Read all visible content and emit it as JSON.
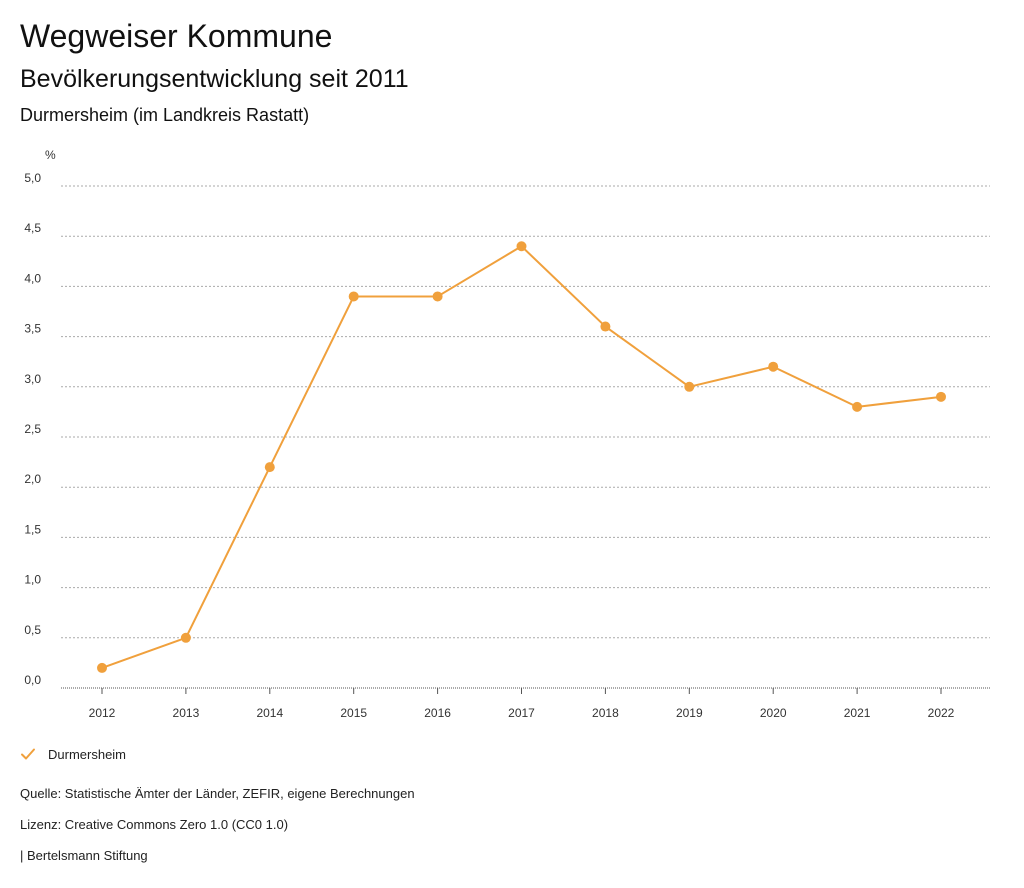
{
  "header": {
    "title": "Wegweiser Kommune",
    "subtitle": "Bevölkerungsentwicklung seit 2011",
    "place": "Durmersheim (im Landkreis Rastatt)"
  },
  "chart_data": {
    "type": "line",
    "title": "Bevölkerungsentwicklung seit 2011",
    "subtitle": "Durmersheim (im Landkreis Rastatt)",
    "xlabel": "",
    "ylabel": "%",
    "categories": [
      "2012",
      "2013",
      "2014",
      "2015",
      "2016",
      "2017",
      "2018",
      "2019",
      "2020",
      "2021",
      "2022"
    ],
    "series": [
      {
        "name": "Durmersheim",
        "color": "#f0a03c",
        "values": [
          0.2,
          0.5,
          2.2,
          3.9,
          3.9,
          4.4,
          3.6,
          3.0,
          3.2,
          2.8,
          2.9
        ]
      }
    ],
    "ylim": [
      0,
      5
    ],
    "yticks": [
      0,
      0.5,
      1,
      1.5,
      2,
      2.5,
      3,
      3.5,
      4,
      4.5,
      5
    ],
    "ytick_labels": [
      "0,0",
      "0,5",
      "1,0",
      "1,5",
      "2,0",
      "2,5",
      "3,0",
      "3,5",
      "4,0",
      "4,5",
      "5,0"
    ],
    "grid": true,
    "legend_position": "bottom-left"
  },
  "legend": {
    "label": "Durmersheim",
    "icon": "check-icon"
  },
  "footer": {
    "source": "Quelle: Statistische Ämter der Länder, ZEFIR, eigene Berechnungen",
    "license": "Lizenz: Creative Commons Zero 1.0 (CC0 1.0)",
    "publisher": "| Bertelsmann Stiftung"
  }
}
